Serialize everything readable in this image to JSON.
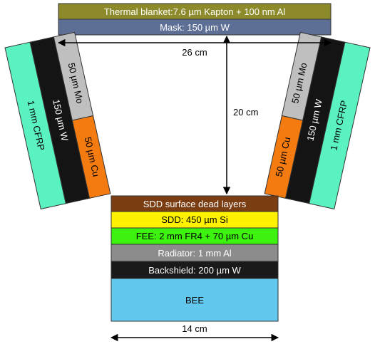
{
  "colors": {
    "thermal_blanket": "#8C8A2A",
    "mask": "#5E6F96",
    "mo": "#BFBFBF",
    "w": "#141414",
    "cfrp": "#5BF2C2",
    "cu": "#F47B0F",
    "dead_layers": "#7B3E12",
    "sdd": "#FFF200",
    "fee": "#3DF20F",
    "radiator": "#8C8C8C",
    "backshield": "#1A1A1A",
    "bee": "#63C8EE",
    "outline": "#333333"
  },
  "top": {
    "thermal_blanket": "Thermal blanket:7.6 µm Kapton + 100 nm Al",
    "mask": "Mask: 150 µm W"
  },
  "left_wall": {
    "mo": "50 µm Mo",
    "w": "150 µm W",
    "cfrp": "1 mm CFRP",
    "cu": "50 µm Cu"
  },
  "right_wall": {
    "mo": "50 µm Mo",
    "w": "150 µm W",
    "cfrp": "1 mm CFRP",
    "cu": "50 µm Cu"
  },
  "stack": {
    "dead_layers": "SDD surface dead layers",
    "sdd": "SDD: 450 µm Si",
    "fee": "FEE: 2 mm FR4 + 70 µm Cu",
    "radiator": "Radiator: 1 mm Al",
    "backshield": "Backshield: 200 µm W",
    "bee": "BEE"
  },
  "dimensions": {
    "width_top": "26 cm",
    "height": "20 cm",
    "width_bottom": "14 cm"
  }
}
